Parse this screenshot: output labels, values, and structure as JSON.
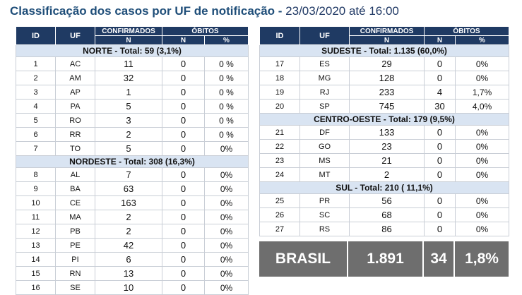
{
  "title": {
    "main": "Classificação dos casos por UF de notificação - ",
    "date": "23/03/2020 até 16:00"
  },
  "headers": {
    "id": "ID",
    "uf": "UF",
    "confirmados": "CONFIRMADOS",
    "obitos": "ÓBITOS",
    "n": "N",
    "pct": "%"
  },
  "left_table": {
    "groups": [
      {
        "label": "NORTE - Total: 59 (3,1%)",
        "rows": [
          {
            "id": "1",
            "uf": "AC",
            "n": "11",
            "obitos": "0",
            "pct": "0 %"
          },
          {
            "id": "2",
            "uf": "AM",
            "n": "32",
            "obitos": "0",
            "pct": "0 %"
          },
          {
            "id": "3",
            "uf": "AP",
            "n": "1",
            "obitos": "0",
            "pct": "0 %"
          },
          {
            "id": "4",
            "uf": "PA",
            "n": "5",
            "obitos": "0",
            "pct": "0 %"
          },
          {
            "id": "5",
            "uf": "RO",
            "n": "3",
            "obitos": "0",
            "pct": "0 %"
          },
          {
            "id": "6",
            "uf": "RR",
            "n": "2",
            "obitos": "0",
            "pct": "0 %"
          },
          {
            "id": "7",
            "uf": "TO",
            "n": "5",
            "obitos": "0",
            "pct": "0%"
          }
        ]
      },
      {
        "label": "NORDESTE -  Total: 308  (16,3%)",
        "rows": [
          {
            "id": "8",
            "uf": "AL",
            "n": "7",
            "obitos": "0",
            "pct": "0%"
          },
          {
            "id": "9",
            "uf": "BA",
            "n": "63",
            "obitos": "0",
            "pct": "0%"
          },
          {
            "id": "10",
            "uf": "CE",
            "n": "163",
            "obitos": "0",
            "pct": "0%"
          },
          {
            "id": "11",
            "uf": "MA",
            "n": "2",
            "obitos": "0",
            "pct": "0%"
          },
          {
            "id": "12",
            "uf": "PB",
            "n": "2",
            "obitos": "0",
            "pct": "0%"
          },
          {
            "id": "13",
            "uf": "PE",
            "n": "42",
            "obitos": "0",
            "pct": "0%"
          },
          {
            "id": "14",
            "uf": "PI",
            "n": "6",
            "obitos": "0",
            "pct": "0%"
          },
          {
            "id": "15",
            "uf": "RN",
            "n": "13",
            "obitos": "0",
            "pct": "0%"
          },
          {
            "id": "16",
            "uf": "SE",
            "n": "10",
            "obitos": "0",
            "pct": "0%"
          }
        ]
      }
    ]
  },
  "right_table": {
    "groups": [
      {
        "label": "SUDESTE - Total:  1.135 (60,0%)",
        "rows": [
          {
            "id": "17",
            "uf": "ES",
            "n": "29",
            "obitos": "0",
            "pct": "0%"
          },
          {
            "id": "18",
            "uf": "MG",
            "n": "128",
            "obitos": "0",
            "pct": "0%"
          },
          {
            "id": "19",
            "uf": "RJ",
            "n": "233",
            "obitos": "4",
            "pct": "1,7%"
          },
          {
            "id": "20",
            "uf": "SP",
            "n": "745",
            "obitos": "30",
            "pct": "4,0%"
          }
        ]
      },
      {
        "label": "CENTRO-OESTE - Total: 179 (9,5%)",
        "rows": [
          {
            "id": "21",
            "uf": "DF",
            "n": "133",
            "obitos": "0",
            "pct": "0%"
          },
          {
            "id": "22",
            "uf": "GO",
            "n": "23",
            "obitos": "0",
            "pct": "0%"
          },
          {
            "id": "23",
            "uf": "MS",
            "n": "21",
            "obitos": "0",
            "pct": "0%"
          },
          {
            "id": "24",
            "uf": "MT",
            "n": "2",
            "obitos": "0",
            "pct": "0%"
          }
        ]
      },
      {
        "label": "SUL - Total:  210 ( 11,1%)",
        "rows": [
          {
            "id": "25",
            "uf": "PR",
            "n": "56",
            "obitos": "0",
            "pct": "0%"
          },
          {
            "id": "26",
            "uf": "SC",
            "n": "68",
            "obitos": "0",
            "pct": "0%"
          },
          {
            "id": "27",
            "uf": "RS",
            "n": "86",
            "obitos": "0",
            "pct": "0%"
          }
        ]
      }
    ]
  },
  "total": {
    "label": "BRASIL",
    "confirmados": "1.891",
    "obitos": "34",
    "pct": "1,8%"
  }
}
